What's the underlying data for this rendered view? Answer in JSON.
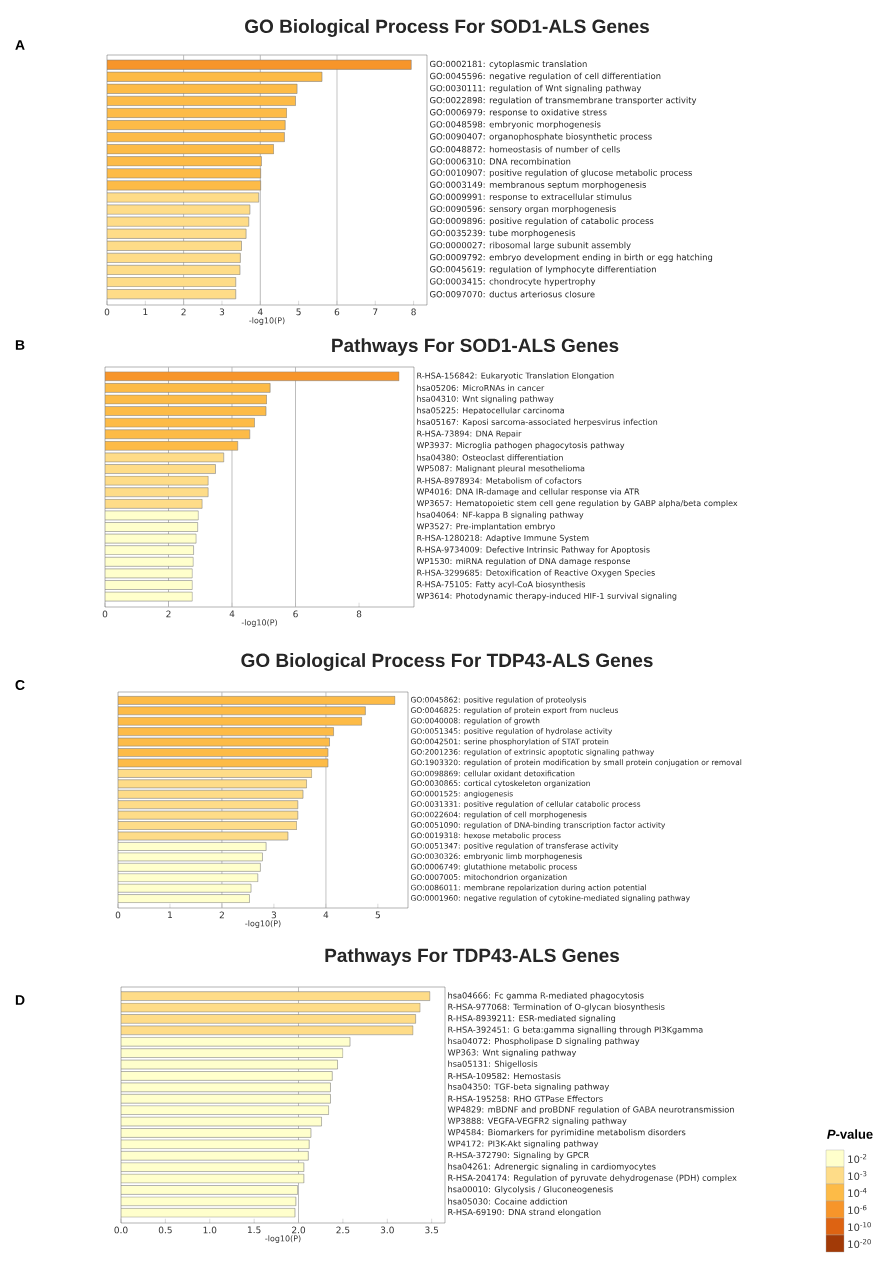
{
  "chart_data": [
    {
      "type": "bar",
      "orientation": "horizontal",
      "title": "GO Biological Process For SOD1-ALS Genes",
      "xlabel": "-log10(P)",
      "annotations": [
        "A"
      ],
      "categories": [
        "GO:0002181: cytoplasmic translation",
        "GO:0045596: negative regulation of cell differentiation",
        "GO:0030111: regulation of Wnt signaling pathway",
        "GO:0022898: regulation of transmembrane transporter activity",
        "GO:0006979: response to oxidative stress",
        "GO:0048598: embryonic morphogenesis",
        "GO:0090407: organophosphate biosynthetic process",
        "GO:0048872: homeostasis of number of cells",
        "GO:0006310: DNA recombination",
        "GO:0010907: positive regulation of glucose metabolic process",
        "GO:0003149: membranous septum morphogenesis",
        "GO:0009991: response to extracellular stimulus",
        "GO:0090596: sensory organ morphogenesis",
        "GO:0009896: positive regulation of catabolic process",
        "GO:0035239: tube morphogenesis",
        "GO:0000027: ribosomal large subunit assembly",
        "GO:0009792: embryo development ending in birth or egg hatching",
        "GO:0045619: regulation of lymphocyte differentiation",
        "GO:0003415: chondrocyte hypertrophy",
        "GO:0097070: ductus arteriosus closure"
      ],
      "values": [
        7.94,
        5.61,
        4.96,
        4.92,
        4.69,
        4.65,
        4.63,
        4.35,
        4.03,
        4.01,
        4.01,
        3.96,
        3.73,
        3.7,
        3.63,
        3.51,
        3.48,
        3.47,
        3.36,
        3.36
      ],
      "colors": [
        "#f7952a",
        "#fdbb47",
        "#fdbb47",
        "#fdbb47",
        "#fdbb47",
        "#fdbb47",
        "#fdbb47",
        "#fdbb47",
        "#fdbb47",
        "#fdbb47",
        "#fdbb47",
        "#fedc88",
        "#fedc88",
        "#fedc88",
        "#fedc88",
        "#fedc88",
        "#fedc88",
        "#fedc88",
        "#fedc88",
        "#fedc88"
      ],
      "xlim": [
        0,
        8.35
      ],
      "xticks": [
        0,
        1,
        2,
        3,
        4,
        5,
        6,
        7,
        8
      ],
      "ref_lines": [
        {
          "axis": "x",
          "value": 2
        },
        {
          "axis": "x",
          "value": 4
        },
        {
          "axis": "x",
          "value": 6
        }
      ]
    },
    {
      "type": "bar",
      "orientation": "horizontal",
      "title": "Pathways For SOD1-ALS Genes",
      "xlabel": "-log10(P)",
      "annotations": [
        "B"
      ],
      "categories": [
        "R-HSA-156842: Eukaryotic Translation Elongation",
        "hsa05206: MicroRNAs in cancer",
        "hsa04310: Wnt signaling pathway",
        "hsa05225: Hepatocellular carcinoma",
        "hsa05167: Kaposi sarcoma-associated herpesvirus infection",
        "R-HSA-73894: DNA Repair",
        "WP3937: Microglia pathogen phagocytosis pathway",
        "hsa04380: Osteoclast differentiation",
        "WP5087: Malignant pleural mesothelioma",
        "R-HSA-8978934: Metabolism of cofactors",
        "WP4016: DNA IR-damage and cellular response via ATR",
        "WP3657: Hematopoietic stem cell gene regulation by GABP alpha/beta complex",
        "hsa04064: NF-kappa B signaling pathway",
        "WP3527: Pre-implantation embryo",
        "R-HSA-1280218: Adaptive Immune System",
        "R-HSA-9734009: Defective Intrinsic Pathway for Apoptosis",
        "WP1530: miRNA regulation of DNA damage response",
        "R-HSA-3299685: Detoxification of Reactive Oxygen Species",
        "R-HSA-75105: Fatty acyl-CoA biosynthesis",
        "WP3614: Photodynamic therapy-induced HIF-1 survival signaling"
      ],
      "values": [
        9.26,
        5.2,
        5.09,
        5.07,
        4.71,
        4.56,
        4.18,
        3.74,
        3.48,
        3.25,
        3.25,
        3.06,
        2.94,
        2.92,
        2.87,
        2.79,
        2.78,
        2.75,
        2.75,
        2.75
      ],
      "colors": [
        "#f7952a",
        "#fdbb47",
        "#fdbb47",
        "#fdbb47",
        "#fdbb47",
        "#fdbb47",
        "#fdbb47",
        "#fedc88",
        "#fedc88",
        "#fedc88",
        "#fedc88",
        "#fedc88",
        "#ffffcc",
        "#ffffcc",
        "#ffffcc",
        "#ffffcc",
        "#ffffcc",
        "#ffffcc",
        "#ffffcc",
        "#ffffcc"
      ],
      "xlim": [
        0,
        9.73
      ],
      "xticks": [
        0,
        2,
        4,
        6,
        8
      ],
      "ref_lines": [
        {
          "axis": "x",
          "value": 2
        },
        {
          "axis": "x",
          "value": 4
        },
        {
          "axis": "x",
          "value": 6
        }
      ]
    },
    {
      "type": "bar",
      "orientation": "horizontal",
      "title": "GO Biological Process For TDP43-ALS Genes",
      "xlabel": "-log10(P)",
      "annotations": [
        "C"
      ],
      "categories": [
        "GO:0045862: positive regulation of proteolysis",
        "GO:0046825: regulation of protein export from nucleus",
        "GO:0040008: regulation of growth",
        "GO:0051345: positive regulation of hydrolase activity",
        "GO:0042501: serine phosphorylation of STAT protein",
        "GO:2001236: regulation of extrinsic apoptotic signaling pathway",
        "GO:1903320: regulation of protein modification by small protein conjugation or removal",
        "GO:0098869: cellular oxidant detoxification",
        "GO:0030865: cortical cytoskeleton organization",
        "GO:0001525: angiogenesis",
        "GO:0031331: positive regulation of cellular catabolic process",
        "GO:0022604: regulation of cell morphogenesis",
        "GO:0051090: regulation of DNA-binding transcription factor activity",
        "GO:0019318: hexose metabolic process",
        "GO:0051347: positive regulation of transferase activity",
        "GO:0030326: embryonic limb morphogenesis",
        "GO:0006749: glutathione metabolic process",
        "GO:0007005: mitochondrion organization",
        "GO:0086011: membrane repolarization during action potential",
        "GO:0001960: negative regulation of cytokine-mediated signaling pathway"
      ],
      "values": [
        5.33,
        4.76,
        4.69,
        4.15,
        4.07,
        4.04,
        4.04,
        3.73,
        3.63,
        3.56,
        3.46,
        3.46,
        3.44,
        3.27,
        2.85,
        2.78,
        2.74,
        2.69,
        2.56,
        2.53
      ],
      "colors": [
        "#fdbb47",
        "#fdbb47",
        "#fdbb47",
        "#fdbb47",
        "#fdbb47",
        "#fdbb47",
        "#fdbb47",
        "#fedc88",
        "#fedc88",
        "#fedc88",
        "#fedc88",
        "#fedc88",
        "#fedc88",
        "#fedc88",
        "#ffffcc",
        "#ffffcc",
        "#ffffcc",
        "#ffffcc",
        "#ffffcc",
        "#ffffcc"
      ],
      "xlim": [
        0,
        5.58
      ],
      "xticks": [
        0,
        1,
        2,
        3,
        4,
        5
      ],
      "ref_lines": [
        {
          "axis": "x",
          "value": 2
        },
        {
          "axis": "x",
          "value": 4
        }
      ]
    },
    {
      "type": "bar",
      "orientation": "horizontal",
      "title": "Pathways For TDP43-ALS Genes",
      "xlabel": "-log10(P)",
      "annotations": [
        "D"
      ],
      "categories": [
        "hsa04666: Fc gamma R-mediated phagocytosis",
        "R-HSA-977068: Termination of O-glycan biosynthesis",
        "R-HSA-8939211: ESR-mediated signaling",
        "R-HSA-392451: G beta:gamma signalling through PI3Kgamma",
        "hsa04072: Phospholipase D signaling pathway",
        "WP363: Wnt signaling pathway",
        "hsa05131: Shigellosis",
        "R-HSA-109582: Hemostasis",
        "hsa04350: TGF-beta signaling pathway",
        "R-HSA-195258: RHO GTPase Effectors",
        "WP4829: mBDNF and proBDNF regulation of GABA neurotransmission",
        "WP3888: VEGFA-VEGFR2 signaling pathway",
        "WP4584: Biomarkers for pyrimidine metabolism disorders",
        "WP4172: PI3K-Akt signaling pathway",
        "R-HSA-372790: Signaling by GPCR",
        "hsa04261: Adrenergic signaling in cardiomyocytes",
        "R-HSA-204174: Regulation of pyruvate dehydrogenase (PDH) complex",
        "hsa00010: Glycolysis / Gluconeogenesis",
        "hsa05030: Cocaine addiction",
        "R-HSA-69190: DNA strand elongation"
      ],
      "values": [
        3.48,
        3.37,
        3.32,
        3.29,
        2.58,
        2.5,
        2.44,
        2.38,
        2.36,
        2.36,
        2.34,
        2.26,
        2.14,
        2.12,
        2.11,
        2.06,
        2.06,
        1.99,
        1.97,
        1.96
      ],
      "colors": [
        "#fedc88",
        "#fedc88",
        "#fedc88",
        "#fedc88",
        "#ffffcc",
        "#ffffcc",
        "#ffffcc",
        "#ffffcc",
        "#ffffcc",
        "#ffffcc",
        "#ffffcc",
        "#ffffcc",
        "#ffffcc",
        "#ffffcc",
        "#ffffcc",
        "#ffffcc",
        "#ffffcc",
        "#ffffcc",
        "#ffffcc",
        "#ffffcc"
      ],
      "xlim": [
        0,
        3.65
      ],
      "xticks": [
        {
          "value": 0,
          "label": "0.0"
        },
        {
          "value": 0.5,
          "label": "0.5"
        },
        {
          "value": 1,
          "label": "1.0"
        },
        {
          "value": 1.5,
          "label": "1.5"
        },
        {
          "value": 2,
          "label": "2.0"
        },
        {
          "value": 2.5,
          "label": "2.5"
        },
        {
          "value": 3,
          "label": "3.0"
        },
        {
          "value": 3.5,
          "label": "3.5"
        }
      ],
      "ref_lines": [
        {
          "axis": "x",
          "value": 2
        }
      ]
    },
    {
      "type": "other",
      "title": "*P*-value",
      "categories": [
        "10$^{-2}$",
        "10$^{-3}$",
        "10$^{-4}$",
        "10$^{-6}$",
        "10$^{-10}$",
        "10$^{-20}$"
      ],
      "colors": [
        "#ffffcc",
        "#fedc88",
        "#fdbb47",
        "#f7952a",
        "#dd6312",
        "#a23a07"
      ]
    }
  ]
}
